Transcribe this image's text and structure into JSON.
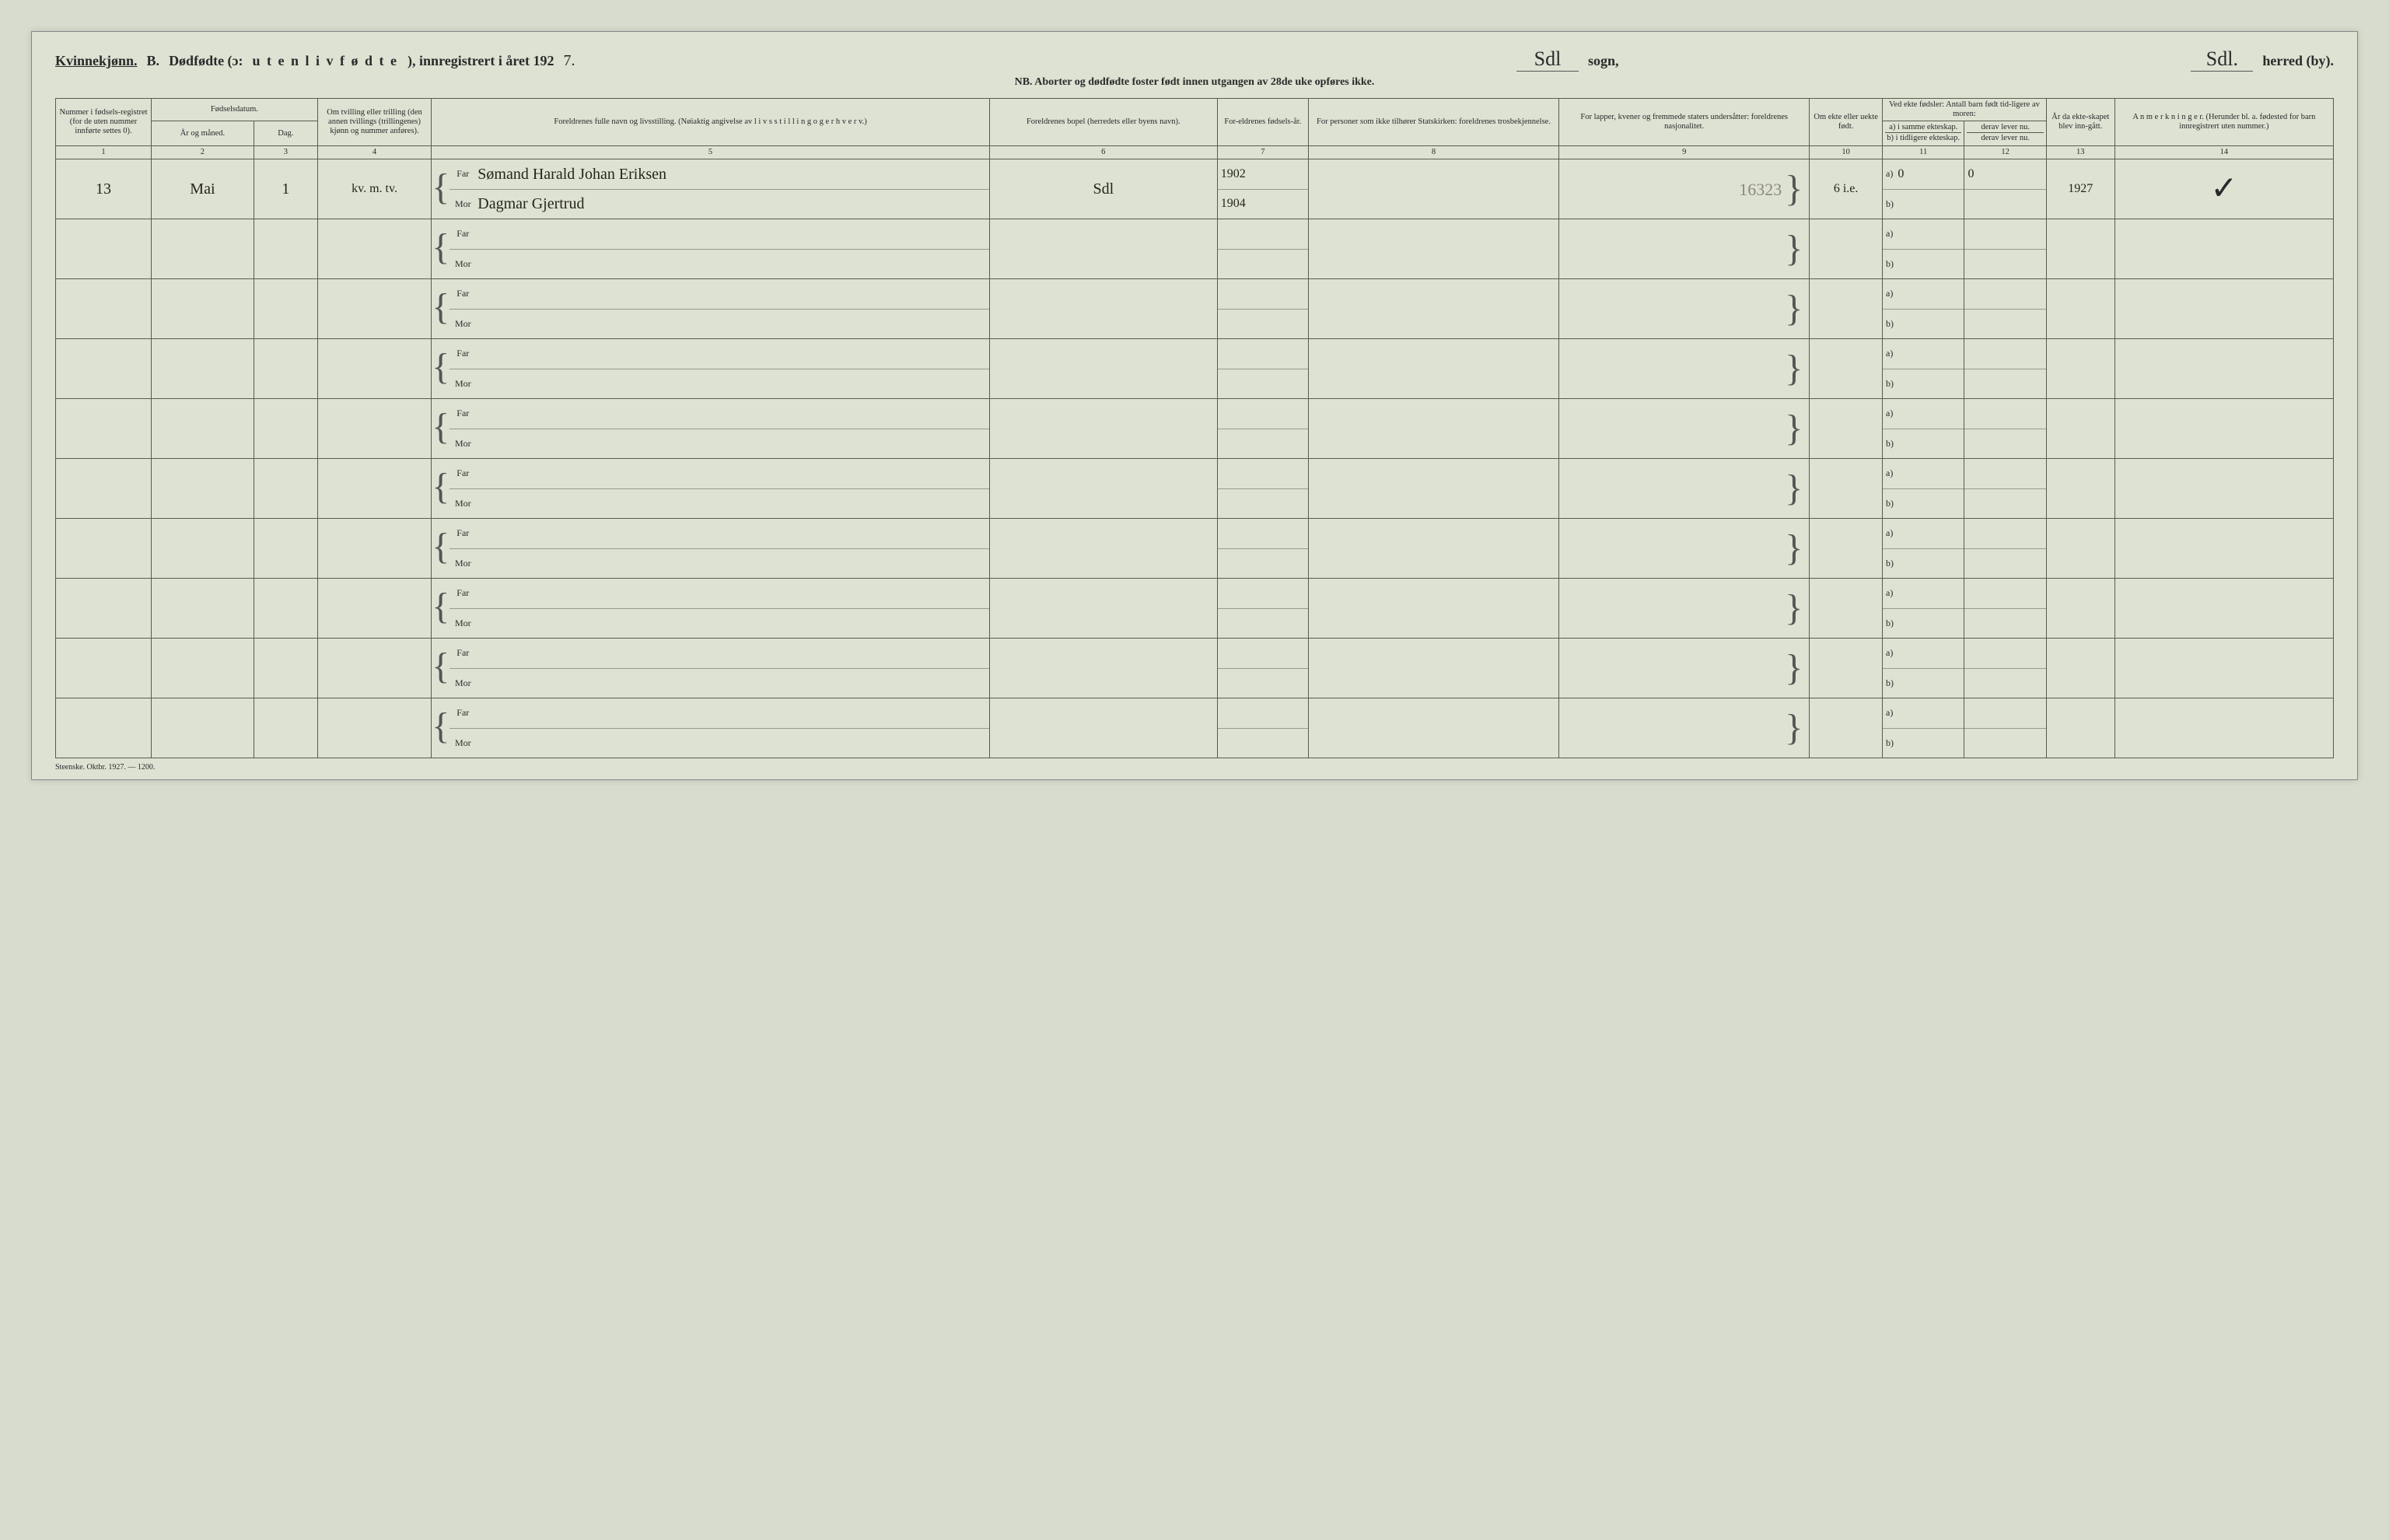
{
  "header": {
    "gender": "Kvinnekjønn.",
    "section_letter": "B.",
    "section_title_1": "Dødfødte (ɔ:",
    "section_title_2": "u t e n  l i v  f ø d t e",
    "section_title_3": "), innregistrert i året 192",
    "year_digit": "7.",
    "sogn_hand": "Sdl",
    "sogn_label": "sogn,",
    "herred_hand": "Sdl.",
    "herred_label": "herred (by).",
    "nb": "NB.  Aborter og dødfødte foster født innen utgangen av 28de uke opføres ikke."
  },
  "columns": {
    "c1": "Nummer i fødsels-registret (for de uten nummer innførte settes 0).",
    "c2_group": "Fødselsdatum.",
    "c2": "År og måned.",
    "c3": "Dag.",
    "c4": "Om tvilling eller trilling (den annen tvillings (trillingenes) kjønn og nummer anføres).",
    "c5": "Foreldrenes fulle navn og livsstilling. (Nøiaktig angivelse av l i v s s t i l l i n g  o g  e r h v e r v.)",
    "c6": "Foreldrenes bopel (herredets eller byens navn).",
    "c7": "For-eldrenes fødsels-år.",
    "c8": "For personer som ikke tilhører Statskirken: foreldrenes trosbekjennelse.",
    "c9": "For lapper, kvener og fremmede staters undersåtter: foreldrenes nasjonalitet.",
    "c10": "Om ekte eller uekte født.",
    "c11_group": "Ved ekte fødsler: Antall barn født tid-ligere av moren:",
    "c11a": "a) i samme ekteskap.",
    "c11b": "b) i tidligere ekteskap.",
    "c12a": "derav lever nu.",
    "c12b": "derav lever nu.",
    "c13": "År da ekte-skapet blev inn-gått.",
    "c14": "A n m e r k n i n g e r. (Herunder bl. a. fødested for barn innregistrert uten nummer.)"
  },
  "colnums": [
    "1",
    "2",
    "3",
    "4",
    "5",
    "6",
    "7",
    "8",
    "9",
    "10",
    "11",
    "12",
    "13",
    "14"
  ],
  "labels": {
    "far": "Far",
    "mor": "Mor",
    "a": "a)",
    "b": "b)"
  },
  "row1": {
    "num": "13",
    "month": "Mai",
    "day": "1",
    "twin": "kv. m. tv.",
    "far_name": "Sømand Harald Johan Eriksen",
    "mor_name": "Dagmar Gjertrud",
    "bopel": "Sdl",
    "far_year": "1902",
    "mor_year": "1904",
    "col8": "",
    "col9_faint": "16323",
    "ekte": "6 i.e.",
    "a_val": "0",
    "a_derav": "0",
    "year_married": "1927",
    "remark": "✓"
  },
  "footer": "Steenske. Oktbr. 1927. — 1200.",
  "style": {
    "background": "#dde2d3",
    "border": "#5a5a4f",
    "hand_color": "#25251c",
    "faint_color": "#8a8a7a",
    "header_fontsize": 18,
    "cell_fontsize": 10.5,
    "col_widths_pct": [
      4.2,
      4.5,
      2.8,
      5.0,
      24.5,
      10.0,
      4.0,
      11.0,
      11.0,
      3.2,
      3.6,
      3.6,
      3.0,
      9.6
    ]
  }
}
